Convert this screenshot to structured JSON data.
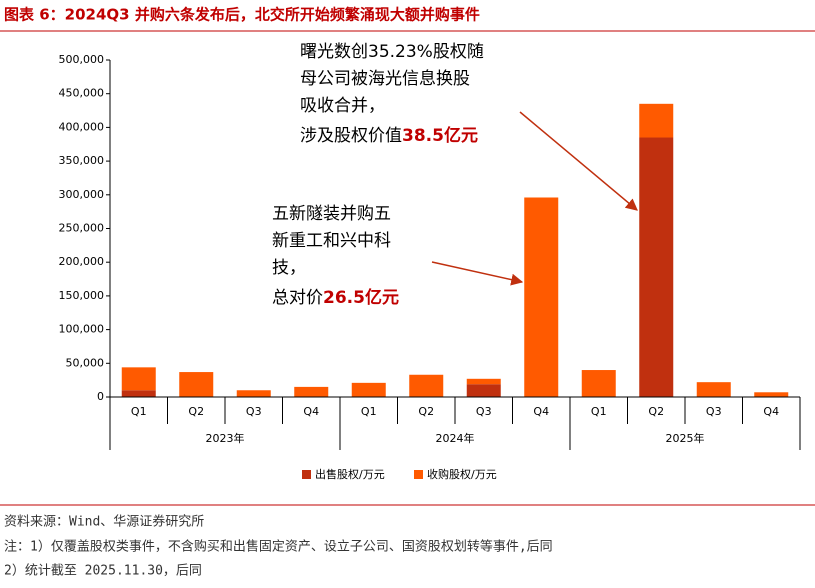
{
  "chart_data": {
    "type": "bar",
    "stacked": true,
    "title": "图表 6：2024Q3 并购六条发布后，北交所开始频繁涌现大额并购事件",
    "categories": [
      "Q1",
      "Q2",
      "Q3",
      "Q4",
      "Q1",
      "Q2",
      "Q3",
      "Q4",
      "Q1",
      "Q2",
      "Q3",
      "Q4"
    ],
    "x_groups": [
      "2023年",
      "2024年",
      "2025年"
    ],
    "series": [
      {
        "name": "出售股权/万元",
        "color": "#c0300f",
        "values": [
          10000,
          0,
          0,
          0,
          0,
          0,
          19000,
          0,
          0,
          385000,
          0,
          0
        ]
      },
      {
        "name": "收购股权/万元",
        "color": "#ff5a00",
        "values": [
          34000,
          37000,
          10000,
          15000,
          21000,
          33000,
          8000,
          296000,
          40000,
          50000,
          22000,
          7000
        ]
      }
    ],
    "ylim": [
      0,
      500000
    ],
    "yticks": [
      0,
      {
        "value": 50000,
        "label": "50,000"
      },
      {
        "value": 100000,
        "label": "100,000"
      },
      {
        "value": 150000,
        "label": "150,000"
      },
      {
        "value": 200000,
        "label": "200,000"
      },
      {
        "value": 250000,
        "label": "250,000"
      },
      {
        "value": 300000,
        "label": "300,000"
      },
      {
        "value": 350000,
        "label": "350,000"
      },
      {
        "value": 400000,
        "label": "400,000"
      },
      {
        "value": 450000,
        "label": "450,000"
      },
      {
        "value": 500000,
        "label": "500,000"
      }
    ],
    "grid": false,
    "legend": "bottom",
    "annotations": [
      {
        "lines": [
          "曙光数创35.23%股权随",
          "母公司被海光信息换股",
          "吸收合并，"
        ],
        "last": "涉及股权价值",
        "highlight": "38.5亿元"
      },
      {
        "lines": [
          "五新隧装并购五",
          "新重工和兴中科",
          "技，"
        ],
        "last": "总对价",
        "highlight": "26.5亿元"
      }
    ]
  },
  "notes": [
    "资料来源：Wind、华源证券研究所",
    "注：1）仅覆盖股权类事件，不含购买和出售固定资产、设立子公司、国资股权划转等事件,后同",
    "2）统计截至 2025.11.30，后同"
  ]
}
